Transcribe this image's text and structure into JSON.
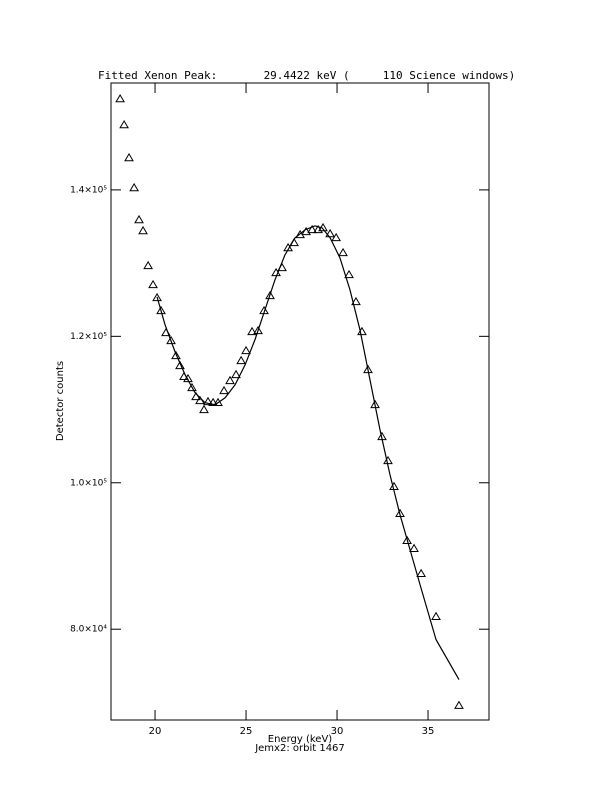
{
  "chart_data": {
    "type": "scatter",
    "title": "Fitted Xenon Peak:       29.4422 keV (     110 Science windows)",
    "x_label": "Energy (keV)",
    "subtitle": "Jemx2: orbit 1467",
    "y_label": "Detector counts",
    "xlim": [
      17.58,
      38.35
    ],
    "ylim": [
      67600,
      154600
    ],
    "xticks": [
      20,
      25,
      30,
      35
    ],
    "yticks": [
      {
        "value": 80000,
        "label": "8.0×10⁴"
      },
      {
        "value": 100000,
        "label": "1.0×10⁵"
      },
      {
        "value": 120000,
        "label": "1.2×10⁵"
      },
      {
        "value": 140000,
        "label": "1.4×10⁵"
      }
    ],
    "color": "#000000",
    "series": [
      {
        "type": "scatter",
        "marker": "triangle",
        "x": [
          18.08,
          18.3,
          18.57,
          18.85,
          19.12,
          19.34,
          19.62,
          19.89,
          20.11,
          20.33,
          20.6,
          20.88,
          21.15,
          21.37,
          21.59,
          21.81,
          22.03,
          22.25,
          22.47,
          22.69,
          22.91,
          23.19,
          23.46,
          23.79,
          24.12,
          24.45,
          24.73,
          25.0,
          25.33,
          25.66,
          25.99,
          26.32,
          26.65,
          26.98,
          27.31,
          27.64,
          27.97,
          28.3,
          28.63,
          28.96,
          29.23,
          29.62,
          29.95,
          30.33,
          30.66,
          31.04,
          31.37,
          31.7,
          32.09,
          32.47,
          32.8,
          33.13,
          33.46,
          33.85,
          34.23,
          34.62,
          35.44,
          36.7
        ],
        "values": [
          152420,
          148870,
          144370,
          140270,
          135900,
          134400,
          129630,
          127030,
          125260,
          123480,
          120480,
          119390,
          117340,
          115980,
          114480,
          114200,
          112970,
          111740,
          111200,
          109970,
          111060,
          110930,
          110930,
          112560,
          113930,
          114750,
          116660,
          118020,
          120620,
          120750,
          123480,
          125530,
          128670,
          129350,
          132080,
          132770,
          133860,
          134270,
          134540,
          134540,
          134810,
          133990,
          133450,
          131400,
          128400,
          124710,
          120620,
          115430,
          110650,
          106280,
          103000,
          99460,
          95770,
          92090,
          91000,
          87580,
          81710,
          69570
        ]
      },
      {
        "type": "line",
        "x": [
          20.11,
          20.55,
          21.1,
          21.65,
          22.2,
          22.75,
          23.3,
          23.85,
          24.4,
          24.95,
          25.49,
          26.04,
          26.59,
          27.14,
          27.69,
          28.24,
          28.79,
          29.18,
          29.62,
          30.16,
          30.71,
          31.26,
          31.81,
          32.36,
          32.91,
          33.46,
          34.01,
          34.56,
          35.44,
          36.7
        ],
        "values": [
          125390,
          121570,
          117880,
          114750,
          112290,
          110930,
          110650,
          111610,
          113390,
          116110,
          119530,
          123620,
          127720,
          131130,
          133450,
          134540,
          135090,
          134810,
          133450,
          130720,
          126350,
          120890,
          114070,
          107240,
          101100,
          95640,
          90870,
          86090,
          78580,
          73120
        ]
      }
    ]
  }
}
